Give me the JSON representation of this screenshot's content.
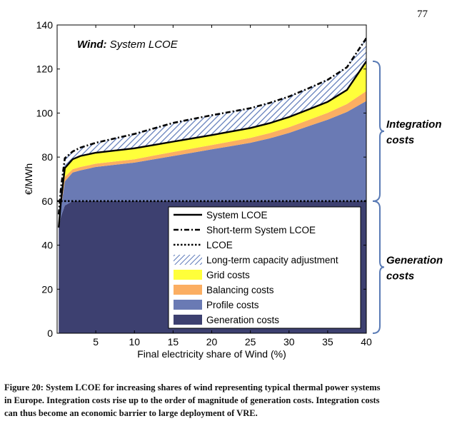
{
  "page_number": "77",
  "caption_lines": [
    "Figure 20: System LCOE for increasing shares of wind representing typical thermal power systems",
    "in Europe. Integration costs rise up to the order of magnitude of generation costs. Integration costs",
    "can thus become an economic barrier to large deployment of VRE."
  ],
  "colors": {
    "generation": "#3d4070",
    "profile": "#6a7ab4",
    "balancing": "#fbae62",
    "grid": "#ffff3a",
    "capacity_hatch": "#5b78b8",
    "bracket": "#5a7bb5"
  },
  "chart_data": {
    "type": "area",
    "title_bold": "Wind:",
    "title_rest": " System LCOE",
    "xlabel": "Final electricity share of Wind (%)",
    "ylabel": "€/MWh",
    "xlim": [
      0,
      40
    ],
    "ylim": [
      0,
      140
    ],
    "xticks": [
      "5",
      "10",
      "15",
      "20",
      "25",
      "30",
      "35",
      "40"
    ],
    "yticks": [
      "0",
      "20",
      "40",
      "60",
      "80",
      "100",
      "120",
      "140"
    ],
    "grid": false,
    "legend_position": "bottom-right",
    "x": [
      0.2,
      0.5,
      1,
      2,
      3,
      5,
      7.5,
      10,
      12.5,
      15,
      17.5,
      20,
      22.5,
      25,
      27.5,
      30,
      32.5,
      35,
      37.5,
      40
    ],
    "series": [
      {
        "name": "Generation costs",
        "key": "generation",
        "values": [
          48,
          53,
          58,
          60,
          60,
          60,
          60,
          60,
          60,
          60,
          60,
          60,
          60,
          60,
          60,
          60,
          60,
          60,
          60,
          60
        ]
      },
      {
        "name": "Profile costs",
        "key": "profile",
        "values": [
          0,
          4,
          11,
          13,
          14,
          15.5,
          16.5,
          17.5,
          19,
          20.5,
          22,
          23.5,
          25,
          26.5,
          28.5,
          31,
          34,
          37,
          40.5,
          45.5
        ]
      },
      {
        "name": "Balancing costs",
        "key": "balancing",
        "values": [
          0,
          1,
          2,
          1.5,
          1.5,
          1.5,
          1.5,
          1.5,
          1.7,
          1.8,
          1.9,
          2,
          2.1,
          2.2,
          2.4,
          2.6,
          2.8,
          3.1,
          3.6,
          4.5
        ]
      },
      {
        "name": "Grid costs",
        "key": "grid",
        "values": [
          0,
          2,
          4,
          4.5,
          5,
          5,
          5,
          5,
          4.8,
          4.7,
          4.6,
          4.6,
          4.5,
          4.5,
          4.5,
          4.6,
          4.8,
          5,
          6.4,
          13.5
        ]
      },
      {
        "name": "Long-term capacity adjustment",
        "key": "capacity",
        "values": [
          6,
          6,
          4.5,
          3.5,
          3.8,
          4.5,
          5.5,
          6.5,
          7.5,
          8.5,
          8.8,
          9,
          9,
          9,
          9.2,
          9.3,
          9.6,
          10,
          10.3,
          10.5
        ]
      }
    ],
    "lines": [
      {
        "name": "System LCOE",
        "style": "solid",
        "values": [
          48,
          60,
          75,
          79,
          80.5,
          82,
          83,
          84,
          85.5,
          87,
          88.5,
          90,
          91.6,
          93.2,
          95.4,
          98.2,
          101.6,
          105.1,
          110.5,
          123.5
        ]
      },
      {
        "name": "Short-term System LCOE",
        "style": "dashdot",
        "values": [
          54,
          66,
          79.5,
          82.5,
          84.3,
          86.5,
          88.5,
          90.5,
          93,
          95.5,
          97.3,
          99,
          100.6,
          102.2,
          104.6,
          107.5,
          111.2,
          115.1,
          120.8,
          134
        ]
      },
      {
        "name": "LCOE",
        "style": "dotted",
        "values": [
          60,
          60
        ]
      }
    ],
    "brackets": [
      {
        "label_lines": [
          "Integration",
          "costs"
        ],
        "range": [
          60,
          123.5
        ]
      },
      {
        "label_lines": [
          "Generation",
          "costs"
        ],
        "range": [
          0,
          60
        ]
      }
    ]
  }
}
